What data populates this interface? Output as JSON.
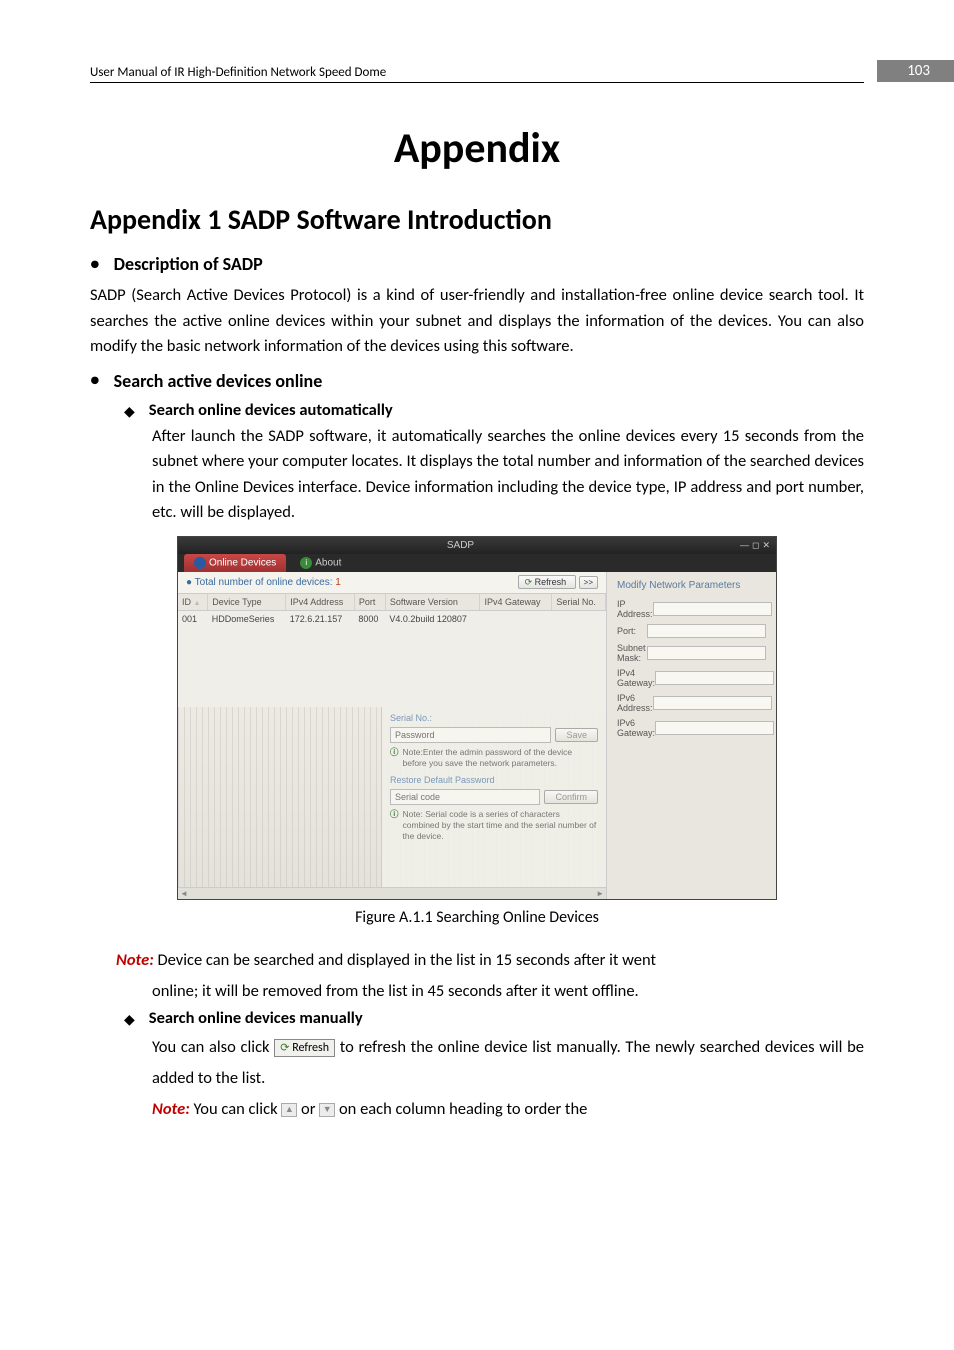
{
  "header": {
    "title": "User Manual of IR High-Definition Network Speed Dome",
    "page": "103"
  },
  "title": "Appendix",
  "h2": "Appendix 1 SADP Software Introduction",
  "sec1": {
    "heading": "Description of SADP",
    "body": "SADP (Search Active Devices Protocol) is a kind of user-friendly and installation-free online device search tool. It searches the active online devices within your subnet and displays the information of the devices. You can also modify the basic network information of the devices using this software."
  },
  "sec2": {
    "heading": "Search active devices online",
    "item1": {
      "title": "Search online devices automatically",
      "body": "After launch the SADP software, it automatically searches the online devices every 15 seconds from the subnet where your computer locates. It displays the total number and information of the searched devices in the Online Devices interface. Device information including the device type, IP address and port number, etc. will be displayed."
    },
    "item2": {
      "title": "Search online devices manually",
      "body1a": "You can also click ",
      "body1b": " to refresh the online device list manually. The newly searched devices will be added to the list.",
      "refresh_label": "Refresh",
      "note2a": " You can click ",
      "note2b": " or ",
      "note2c": " on each column heading to order the"
    }
  },
  "figure": {
    "caption": "Figure A.1.1 Searching Online Devices"
  },
  "note1": {
    "label": "Note:",
    "text1": " Device can be searched and displayed in the list in 15 seconds after it went",
    "text2": "online; it will be removed from the list in 45 seconds after it went offline."
  },
  "note2": {
    "label": "Note:"
  },
  "sadp": {
    "window_title": "SADP",
    "tab_online": "Online Devices",
    "tab_about": "About",
    "count_label": "Total number of online devices:",
    "count_value": "1",
    "refresh": "Refresh",
    "toggle": ">>",
    "cols": {
      "id": "ID",
      "type": "Device Type",
      "ip": "IPv4 Address",
      "port": "Port",
      "sw": "Software Version",
      "gw": "IPv4 Gateway",
      "sn": "Serial No."
    },
    "row": {
      "id": "001",
      "type": "HDDomeSeries",
      "ip": "172.6.21.157",
      "port": "8000",
      "sw": "V4.0.2build 120807",
      "gw": "",
      "sn": ""
    },
    "right": {
      "title": "Modify Network Parameters",
      "f1": "IP Address:",
      "f2": "Port:",
      "f3": "Subnet Mask:",
      "f4": "IPv4 Gateway:",
      "f5": "IPv6 Address:",
      "f6": "IPv6 Gateway:"
    },
    "panel": {
      "serial_label": "Serial No.:",
      "pwd_placeholder": "Password",
      "save": "Save",
      "note1": "Note:Enter the admin password of the device before you save the network parameters.",
      "restore": "Restore Default Password",
      "serial_placeholder": "Serial code",
      "confirm": "Confirm",
      "note2": "Note: Serial code is a series of characters combined by the start time and the serial number of the device."
    }
  }
}
